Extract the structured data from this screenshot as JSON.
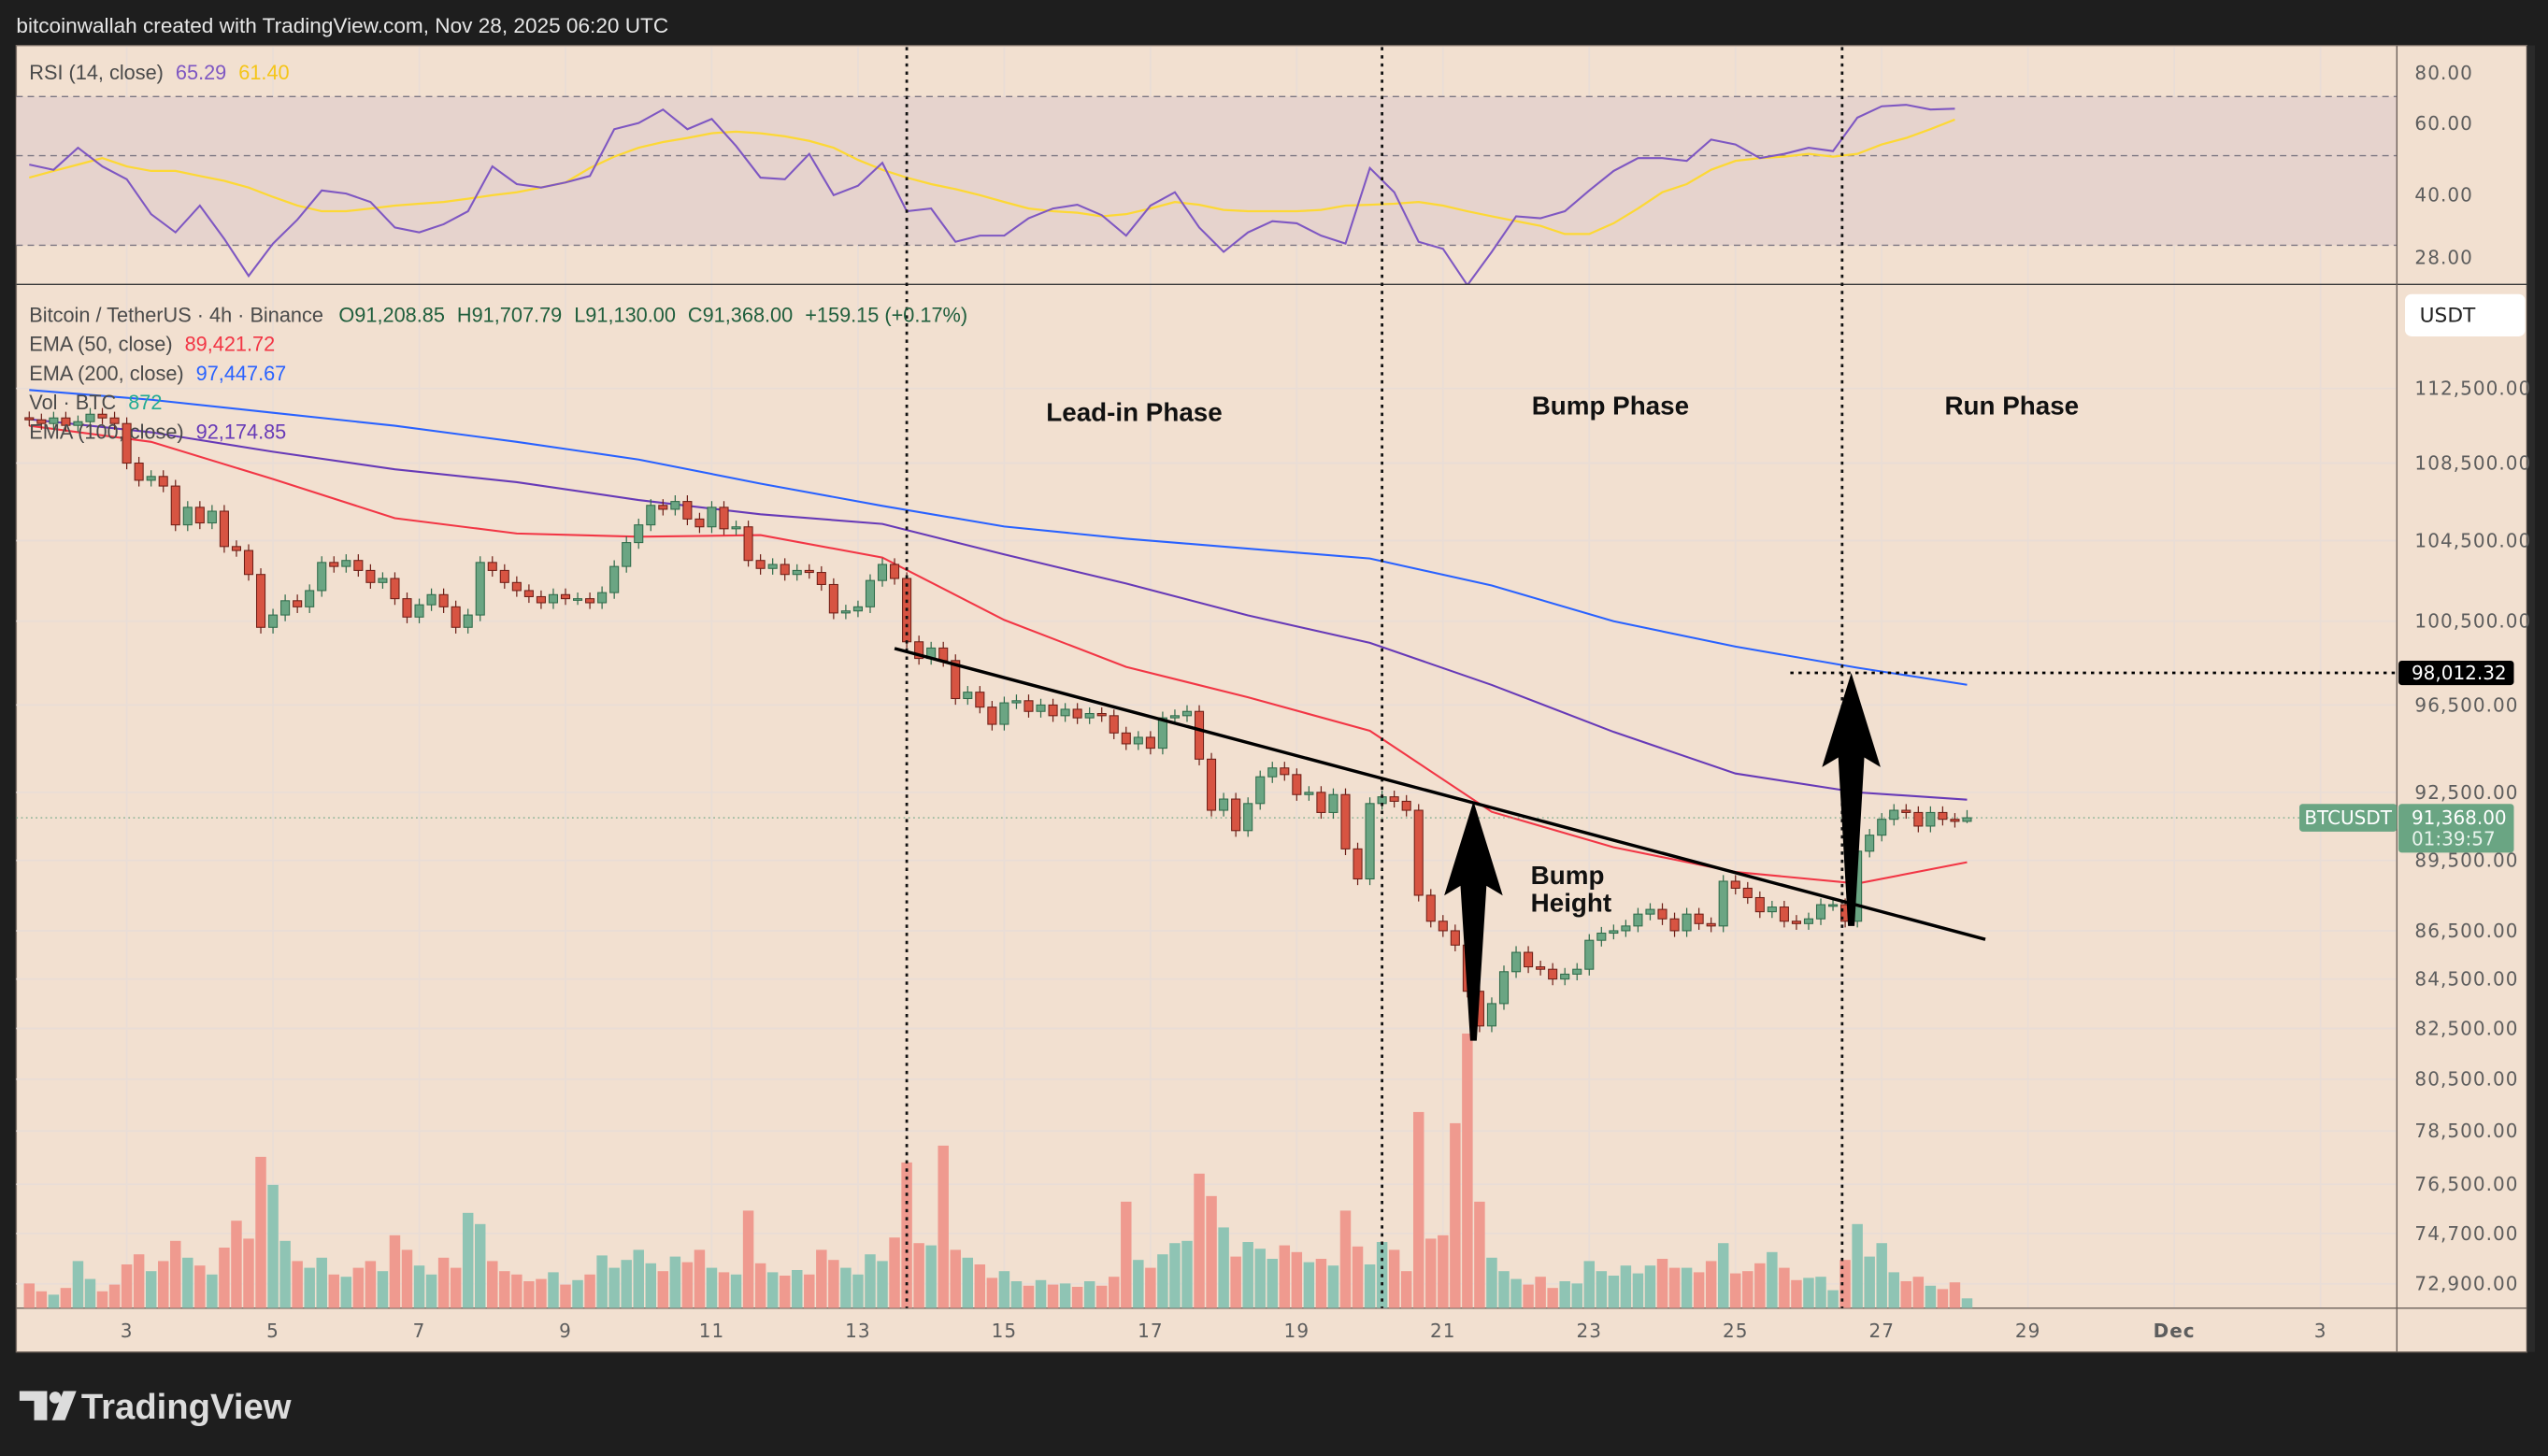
{
  "header": {
    "attribution": "bitcoinwallah created with TradingView.com, Nov 28, 2025 06:20 UTC"
  },
  "legend": {
    "rsi_label": "RSI (14, close)",
    "rsi_value": "65.29",
    "rsi_ma_value": "61.40",
    "symbol": "Bitcoin / TetherUS · 4h · Binance",
    "open": "O91,208.85",
    "high": "H91,707.79",
    "low": "L91,130.00",
    "close": "C91,368.00",
    "change": "+159.15 (+0.17%)",
    "ema50_label": "EMA (50, close)",
    "ema50_value": "89,421.72",
    "ema200_label": "EMA (200, close)",
    "ema200_value": "97,447.67",
    "vol_label": "Vol · BTC",
    "vol_value": "872",
    "ema100_label": "EMA (100, close)",
    "ema100_value": "92,174.85"
  },
  "annotations": {
    "lead_in": "Lead-in Phase",
    "bump": "Bump Phase",
    "run": "Run Phase",
    "bump_height_line1": "Bump",
    "bump_height_line2": "Height",
    "phase_dividers": [
      "2025-11-13 16:00",
      "2025-11-20 04:00",
      "2025-11-26 11:00"
    ],
    "trendline": [
      {
        "t": "2025-11-13 12:00",
        "price": 99180
      },
      {
        "t": "2025-11-28 10:00",
        "price": 86140
      }
    ],
    "bump_arrow": {
      "t": "2025-11-21 10:00",
      "from": 82010,
      "to": 92100
    },
    "run_arrow": {
      "t": "2025-11-26 14:00",
      "from": 86700,
      "to": 98012.32
    },
    "target_line": {
      "from_t": "2025-11-25 18:00",
      "price": 98012.32
    }
  },
  "price_axis": {
    "currency_button": "USDT",
    "ticks": [
      {
        "v": 112500,
        "label": "112,500.00"
      },
      {
        "v": 108500,
        "label": "108,500.00"
      },
      {
        "v": 104500,
        "label": "104,500.00"
      },
      {
        "v": 100500,
        "label": "100,500.00"
      },
      {
        "v": 96500,
        "label": "96,500.00"
      },
      {
        "v": 92500,
        "label": "92,500.00"
      },
      {
        "v": 89500,
        "label": "89,500.00"
      },
      {
        "v": 86500,
        "label": "86,500.00"
      },
      {
        "v": 84500,
        "label": "84,500.00"
      },
      {
        "v": 82500,
        "label": "82,500.00"
      },
      {
        "v": 80500,
        "label": "80,500.00"
      },
      {
        "v": 78500,
        "label": "78,500.00"
      },
      {
        "v": 76500,
        "label": "76,500.00"
      },
      {
        "v": 74700,
        "label": "74,700.00"
      },
      {
        "v": 72900,
        "label": "72,900.00"
      }
    ],
    "scale": "log",
    "target_label": "98,012.32",
    "symbol_tag": "BTCUSDT",
    "last_price": "91,368.00",
    "countdown": "01:39:57"
  },
  "rsi_axis": {
    "scale": "log",
    "ticks": [
      {
        "v": 80,
        "label": "80.00"
      },
      {
        "v": 60,
        "label": "60.00"
      },
      {
        "v": 40,
        "label": "40.00"
      },
      {
        "v": 28,
        "label": "28.00"
      }
    ],
    "bands": [
      70,
      50,
      30
    ]
  },
  "time_axis": [
    {
      "label": "3",
      "date": "2025-11-03"
    },
    {
      "label": "5",
      "date": "2025-11-05"
    },
    {
      "label": "7",
      "date": "2025-11-07"
    },
    {
      "label": "9",
      "date": "2025-11-09"
    },
    {
      "label": "11",
      "date": "2025-11-11"
    },
    {
      "label": "13",
      "date": "2025-11-13"
    },
    {
      "label": "15",
      "date": "2025-11-15"
    },
    {
      "label": "17",
      "date": "2025-11-17"
    },
    {
      "label": "19",
      "date": "2025-11-19"
    },
    {
      "label": "21",
      "date": "2025-11-21"
    },
    {
      "label": "23",
      "date": "2025-11-23"
    },
    {
      "label": "25",
      "date": "2025-11-25"
    },
    {
      "label": "27",
      "date": "2025-11-27"
    },
    {
      "label": "29",
      "date": "2025-11-29"
    },
    {
      "label": "Dec",
      "date": "2025-12-01"
    },
    {
      "label": "3",
      "date": "2025-12-03"
    }
  ],
  "brand": "TradingView",
  "colors": {
    "background": "#1e1e1e",
    "chart_bg": "#f2e0d0",
    "rsi_band": "#e6d3cd",
    "up": "#6ba583",
    "down": "#d75442",
    "vol_up": "#8fc4b4",
    "vol_down": "#ef9a8f",
    "ema50": "#f23645",
    "ema100": "#673ab7",
    "ema200": "#2962ff",
    "rsi": "#7e57c2",
    "rsi_ma": "#fdd835",
    "ohlc_text": "#1f5e3c",
    "vol_text": "#22ab94",
    "last_price_tag": "#6aa583"
  },
  "chart_data": {
    "type": "candlestick",
    "symbol": "BTCUSDT",
    "interval": "4h",
    "start": "2025-11-01 16:00",
    "closes": [
      110800,
      110600,
      110900,
      110500,
      110700,
      111100,
      110900,
      110600,
      108500,
      107600,
      107800,
      107300,
      105300,
      106200,
      105400,
      106000,
      104200,
      104000,
      102800,
      100200,
      100800,
      101500,
      101200,
      102000,
      103400,
      103200,
      103500,
      103000,
      102400,
      102600,
      101600,
      100700,
      101300,
      101800,
      101200,
      100200,
      100800,
      103400,
      103000,
      102400,
      102000,
      101700,
      101400,
      101800,
      101600,
      101600,
      101400,
      101900,
      103200,
      104400,
      105300,
      106300,
      106100,
      106500,
      105600,
      105200,
      106200,
      105100,
      105200,
      103500,
      103100,
      103300,
      102800,
      103000,
      102900,
      102300,
      100900,
      101000,
      101200,
      102500,
      103300,
      102600,
      99500,
      98700,
      99200,
      98600,
      96800,
      97100,
      96400,
      95600,
      96600,
      96700,
      96200,
      96500,
      96000,
      96300,
      95900,
      96100,
      96000,
      95200,
      94700,
      95000,
      94500,
      95900,
      96000,
      96200,
      94000,
      91700,
      92200,
      90800,
      92000,
      93200,
      93600,
      93300,
      92400,
      92500,
      91600,
      92400,
      90000,
      88700,
      92000,
      92300,
      92100,
      91700,
      88000,
      86900,
      86500,
      85900,
      84000,
      82600,
      83500,
      84800,
      85600,
      85000,
      84900,
      84500,
      84700,
      84900,
      86100,
      86400,
      86500,
      86700,
      87200,
      87400,
      87000,
      86500,
      87200,
      86800,
      86700,
      88600,
      88300,
      87900,
      87300,
      87500,
      86900,
      86800,
      87000,
      87600,
      87600,
      86900,
      89900,
      90600,
      91300,
      91700,
      91600,
      91000,
      91600,
      91300,
      91208.85,
      91368
    ],
    "last_candle": {
      "open": 91208.85,
      "high": 91707.79,
      "low": 91130.0,
      "close": 91368.0,
      "change": 159.15,
      "change_pct": 0.17
    },
    "volume_btc": [
      2200,
      1500,
      1200,
      1800,
      4200,
      2600,
      1500,
      2100,
      3900,
      4800,
      3300,
      4200,
      6000,
      4500,
      3800,
      3000,
      5400,
      7800,
      6200,
      13500,
      11000,
      6000,
      4200,
      3600,
      4500,
      3000,
      2800,
      3600,
      4200,
      3300,
      6500,
      5200,
      3800,
      3000,
      4500,
      3600,
      8500,
      7500,
      4200,
      3300,
      3000,
      2400,
      2600,
      3200,
      2100,
      2500,
      3000,
      4700,
      3600,
      4300,
      5200,
      4000,
      3300,
      4600,
      4100,
      5200,
      3600,
      3200,
      3000,
      8700,
      4000,
      3200,
      2900,
      3400,
      3000,
      5200,
      4300,
      3600,
      3000,
      4800,
      4200,
      6300,
      13000,
      5800,
      5600,
      14500,
      5200,
      4500,
      3900,
      2700,
      3300,
      2400,
      2000,
      2500,
      2100,
      2200,
      1900,
      2400,
      2000,
      2800,
      9500,
      4300,
      3600,
      4800,
      5800,
      6000,
      12000,
      10000,
      7200,
      4600,
      5900,
      5300,
      4400,
      5600,
      5000,
      4100,
      4400,
      3800,
      8700,
      5500,
      3900,
      5900,
      5200,
      3300,
      17500,
      6200,
      6500,
      16500,
      24500,
      9500,
      4500,
      3300,
      2600,
      2100,
      2800,
      1800,
      2400,
      2200,
      4200,
      3300,
      2900,
      3800,
      3100,
      3800,
      4400,
      3600,
      3600,
      3200,
      4200,
      5800,
      3100,
      3300,
      4000,
      5000,
      3600,
      2500,
      2700,
      2800,
      1600,
      4300,
      7500,
      4600,
      5800,
      3200,
      2400,
      2800,
      2000,
      1700,
      2300,
      872
    ],
    "ema": [
      {
        "name": "EMA (50, close)",
        "color_key": "ema50",
        "points": [
          [
            "2025-11-01 16:00",
            110480
          ],
          [
            "2025-11-03 08:00",
            109620
          ],
          [
            "2025-11-05 00:00",
            107660
          ],
          [
            "2025-11-06 16:00",
            105640
          ],
          [
            "2025-11-08 08:00",
            104860
          ],
          [
            "2025-11-10 00:00",
            104700
          ],
          [
            "2025-11-11 16:00",
            104780
          ],
          [
            "2025-11-13 08:00",
            103650
          ],
          [
            "2025-11-15 00:00",
            100560
          ],
          [
            "2025-11-16 16:00",
            98300
          ],
          [
            "2025-11-18 08:00",
            96860
          ],
          [
            "2025-11-20 00:00",
            95300
          ],
          [
            "2025-11-21 16:00",
            91630
          ],
          [
            "2025-11-23 08:00",
            90070
          ],
          [
            "2025-11-25 00:00",
            89000
          ],
          [
            "2025-11-26 16:00",
            88500
          ],
          [
            "2025-11-28 04:00",
            89421.72
          ]
        ]
      },
      {
        "name": "EMA (100, close)",
        "color_key": "ema100",
        "points": [
          [
            "2025-11-01 16:00",
            110830
          ],
          [
            "2025-11-03 08:00",
            110130
          ],
          [
            "2025-11-05 00:00",
            109100
          ],
          [
            "2025-11-06 16:00",
            108170
          ],
          [
            "2025-11-08 08:00",
            107500
          ],
          [
            "2025-11-10 00:00",
            106580
          ],
          [
            "2025-11-11 16:00",
            105840
          ],
          [
            "2025-11-13 08:00",
            105350
          ],
          [
            "2025-11-15 00:00",
            103800
          ],
          [
            "2025-11-16 16:00",
            102350
          ],
          [
            "2025-11-18 08:00",
            100780
          ],
          [
            "2025-11-20 00:00",
            99450
          ],
          [
            "2025-11-21 16:00",
            97440
          ],
          [
            "2025-11-23 08:00",
            95250
          ],
          [
            "2025-11-25 00:00",
            93350
          ],
          [
            "2025-11-26 16:00",
            92500
          ],
          [
            "2025-11-28 04:00",
            92174.85
          ]
        ]
      },
      {
        "name": "EMA (200, close)",
        "color_key": "ema200",
        "points": [
          [
            "2025-11-01 16:00",
            112411
          ],
          [
            "2025-11-03 08:00",
            111882
          ],
          [
            "2025-11-05 00:00",
            111181
          ],
          [
            "2025-11-06 16:00",
            110484
          ],
          [
            "2025-11-08 08:00",
            109621
          ],
          [
            "2025-11-10 00:00",
            108683
          ],
          [
            "2025-11-11 16:00",
            107423
          ],
          [
            "2025-11-13 08:00",
            106273
          ],
          [
            "2025-11-15 00:00",
            105219
          ],
          [
            "2025-11-16 16:00",
            104595
          ],
          [
            "2025-11-18 08:00",
            104100
          ],
          [
            "2025-11-20 00:00",
            103600
          ],
          [
            "2025-11-21 16:00",
            102250
          ],
          [
            "2025-11-23 08:00",
            100500
          ],
          [
            "2025-11-25 00:00",
            99270
          ],
          [
            "2025-11-26 16:00",
            98260
          ],
          [
            "2025-11-28 04:00",
            97447.67
          ]
        ]
      }
    ],
    "rsi": {
      "interval": "8h",
      "start": "2025-11-01 16:00",
      "values": [
        47.5,
        46.1,
        52.3,
        47.0,
        43.7,
        35.8,
        32.3,
        37.6,
        31.1,
        25.2,
        30.3,
        34.7,
        41.0,
        40.3,
        38.4,
        33.2,
        32.3,
        33.8,
        36.4,
        47.0,
        42.5,
        41.7,
        42.9,
        44.5,
        58.1,
        60.2,
        65.0,
        58.1,
        61.6,
        52.8,
        44.1,
        43.7,
        50.5,
        39.9,
        42.1,
        48.0,
        36.4,
        37.0,
        30.6,
        31.7,
        31.7,
        35.0,
        37.0,
        37.8,
        35.6,
        31.7,
        37.6,
        40.6,
        33.2,
        28.9,
        32.3,
        34.4,
        34.0,
        31.7,
        30.3,
        46.6,
        40.6,
        30.6,
        29.4,
        23.9,
        28.9,
        35.4,
        35.0,
        36.4,
        41.0,
        45.8,
        49.3,
        49.3,
        48.5,
        54.8,
        53.3,
        49.3,
        50.5,
        52.3,
        51.3,
        62.1,
        66.2,
        66.8,
        65.0,
        65.29
      ],
      "ma_values": [
        44.1,
        45.8,
        47.5,
        49.3,
        47.0,
        45.8,
        45.8,
        44.5,
        43.3,
        41.7,
        39.5,
        37.6,
        36.4,
        36.4,
        37.0,
        37.6,
        38.0,
        38.4,
        39.1,
        39.9,
        40.6,
        41.7,
        42.9,
        46.6,
        49.7,
        52.3,
        54.0,
        55.3,
        56.8,
        57.3,
        56.8,
        55.8,
        54.4,
        52.3,
        48.8,
        46.1,
        44.1,
        42.5,
        41.3,
        39.9,
        38.4,
        37.0,
        36.4,
        36.1,
        35.4,
        35.8,
        37.0,
        38.4,
        37.8,
        36.7,
        36.4,
        36.4,
        36.4,
        36.7,
        37.6,
        37.8,
        38.0,
        38.4,
        37.6,
        36.4,
        35.4,
        34.4,
        33.5,
        32.0,
        32.0,
        34.0,
        37.0,
        40.6,
        42.5,
        46.1,
        48.5,
        49.3,
        49.7,
        50.5,
        49.7,
        50.5,
        53.3,
        55.3,
        58.1,
        61.4
      ]
    },
    "price_scale": "log",
    "grid": true,
    "legend": "top-left"
  }
}
